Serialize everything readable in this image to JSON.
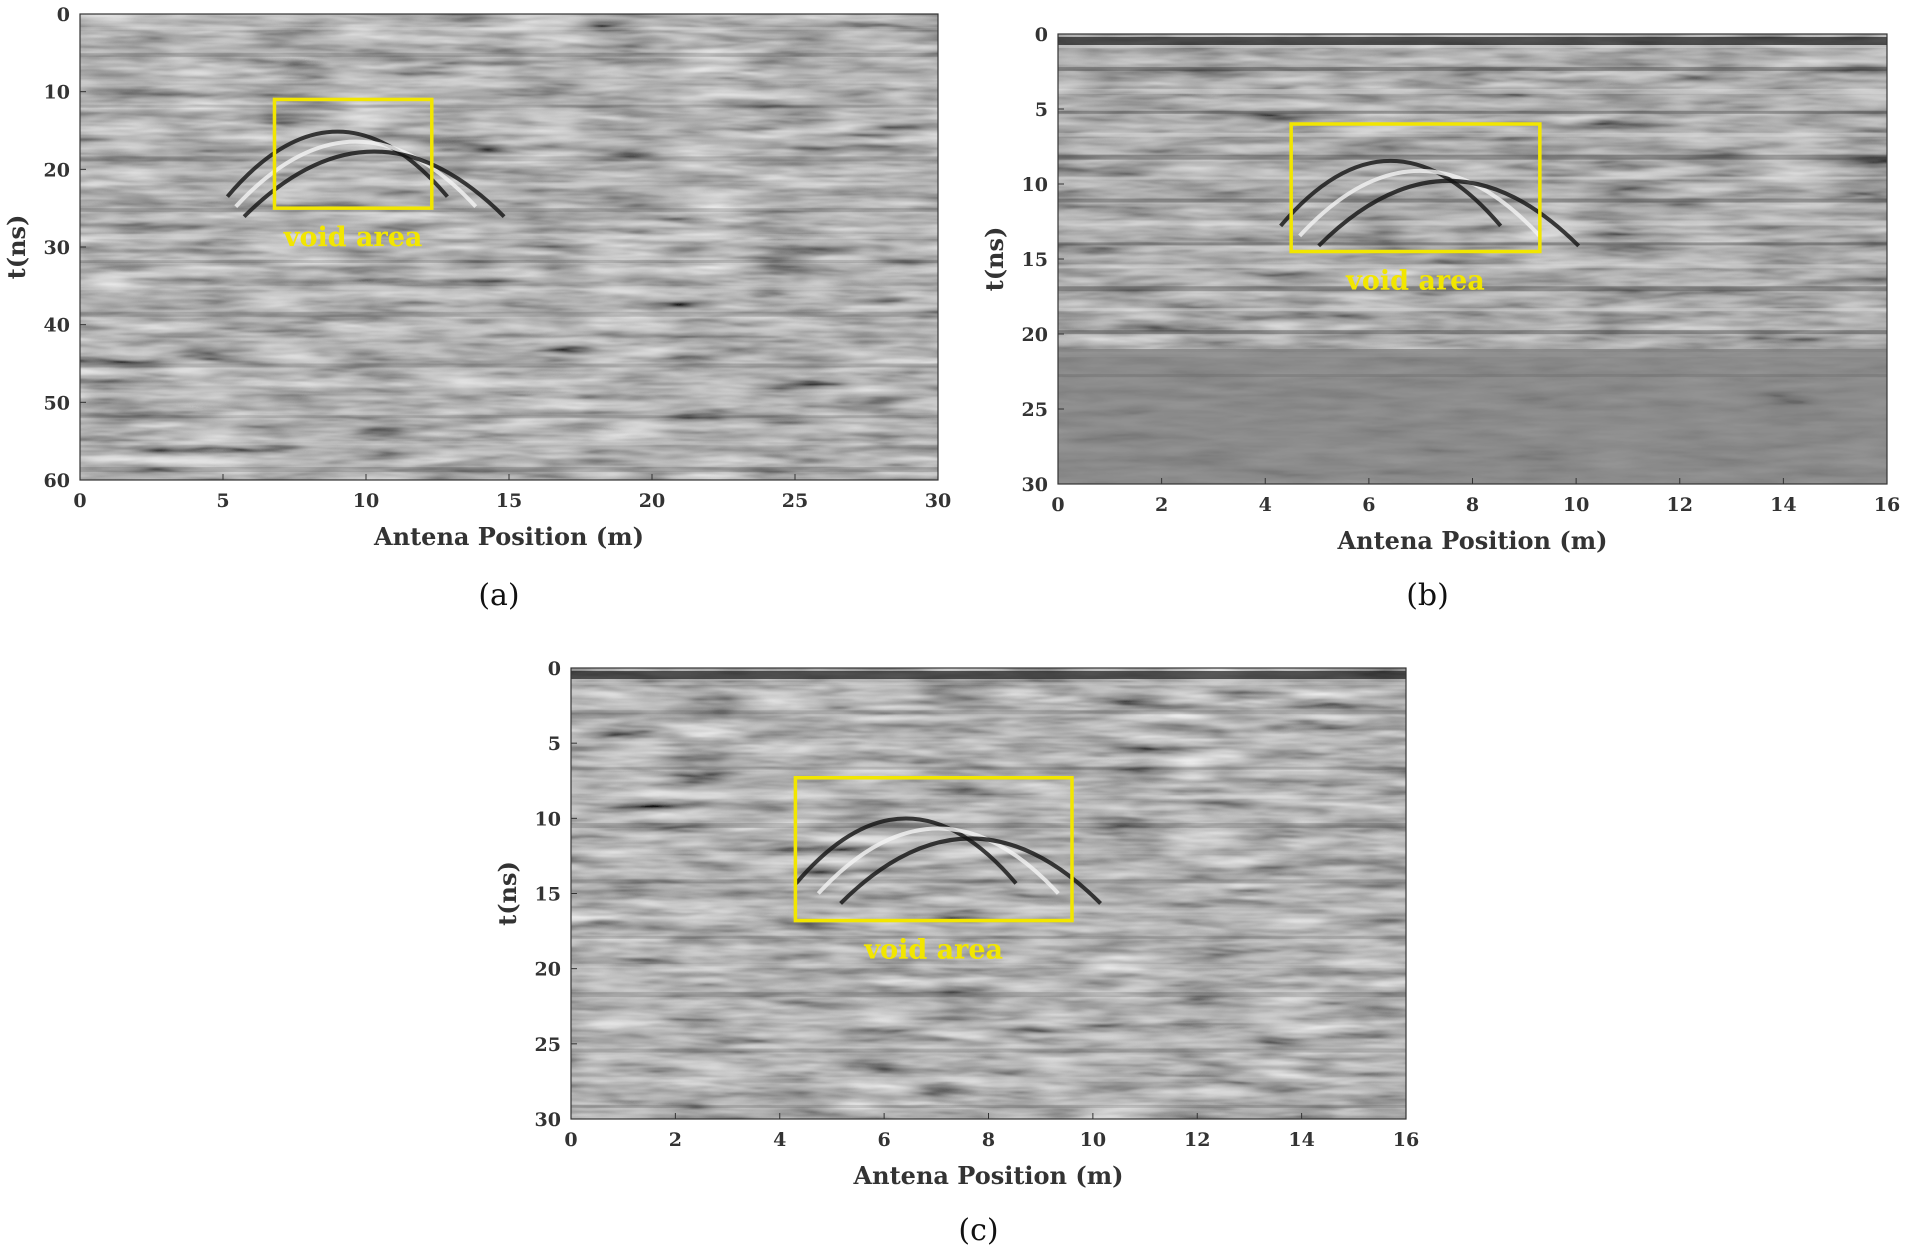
{
  "chart_data": [
    {
      "type": "heatmap",
      "panel_label": "(a)",
      "xlabel": "Antena Position (m)",
      "ylabel": "t(ns)",
      "xlim": [
        0,
        30
      ],
      "ylim": [
        0,
        60
      ],
      "y_inverted": true,
      "xticks": [
        0,
        5,
        10,
        15,
        20,
        25,
        30
      ],
      "yticks": [
        0,
        10,
        20,
        30,
        40,
        50,
        60
      ],
      "colormap": "grayscale",
      "annotation": {
        "text": "void area",
        "color": "#f2e600",
        "x_range": [
          6.8,
          12.3
        ],
        "t_range": [
          11,
          25
        ]
      }
    },
    {
      "type": "heatmap",
      "panel_label": "(b)",
      "xlabel": "Antena Position (m)",
      "ylabel": "t(ns)",
      "xlim": [
        0,
        16
      ],
      "ylim": [
        0,
        30
      ],
      "y_inverted": true,
      "xticks": [
        0,
        2,
        4,
        6,
        8,
        10,
        12,
        14,
        16
      ],
      "yticks": [
        0,
        5,
        10,
        15,
        20,
        25,
        30
      ],
      "colormap": "grayscale",
      "annotation": {
        "text": "void area",
        "color": "#f2e600",
        "x_range": [
          4.5,
          9.3
        ],
        "t_range": [
          6,
          14.5
        ]
      }
    },
    {
      "type": "heatmap",
      "panel_label": "(c)",
      "xlabel": "Antena Position (m)",
      "ylabel": "t(ns)",
      "xlim": [
        0,
        16
      ],
      "ylim": [
        0,
        30
      ],
      "y_inverted": true,
      "xticks": [
        0,
        2,
        4,
        6,
        8,
        10,
        12,
        14,
        16
      ],
      "yticks": [
        0,
        5,
        10,
        15,
        20,
        25,
        30
      ],
      "colormap": "grayscale",
      "annotation": {
        "text": "void area",
        "color": "#f2e600",
        "x_range": [
          4.3,
          9.6
        ],
        "t_range": [
          7.3,
          16.8
        ]
      }
    }
  ]
}
